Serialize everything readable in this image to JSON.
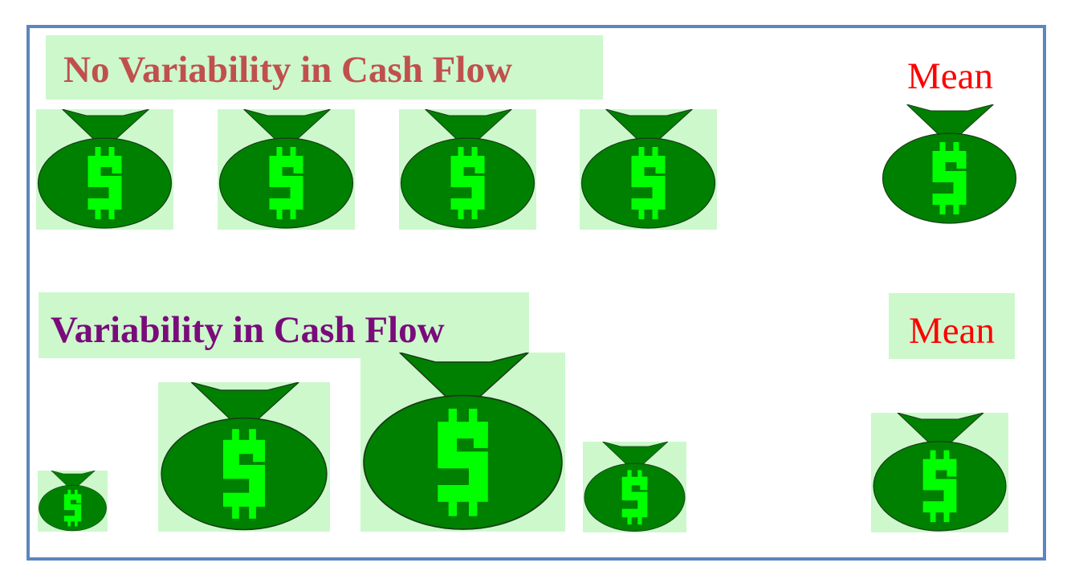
{
  "headings": {
    "no_variability": "No Variability in Cash Flow",
    "variability": "Variability in Cash Flow"
  },
  "mean_labels": {
    "top": "Mean",
    "bottom": "Mean"
  },
  "icons": {
    "bag": "money-bag-icon",
    "symbol": "$"
  },
  "colors": {
    "frame": "#5b86c0",
    "bag_fill": "#008000",
    "dollar": "#00ff00",
    "highlight": "#ccf8cc",
    "heading_top": "#c0504d",
    "heading_bottom": "#7a0b7a",
    "mean": "#ff0000"
  }
}
